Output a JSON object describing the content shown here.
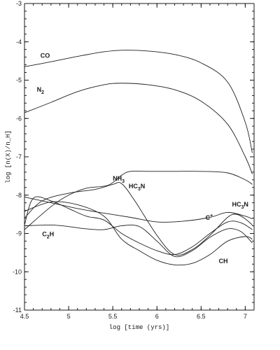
{
  "chart_data": {
    "type": "line",
    "xlabel": "log [time (yrs)]",
    "ylabel": "log [n(X)/n_H]",
    "xlim": [
      4.5,
      7.1
    ],
    "ylim": [
      -11,
      -3
    ],
    "x_ticks": [
      4.5,
      5,
      5.5,
      6,
      6.5,
      7
    ],
    "x_tick_labels": [
      "4.5",
      "5",
      "5.5",
      "6",
      "6.5",
      "7"
    ],
    "y_ticks": [
      -11,
      -10,
      -9,
      -8,
      -7,
      -6,
      -5,
      -4,
      -3
    ],
    "y_tick_labels": [
      "-11",
      "-10",
      "-9",
      "-8",
      "-7",
      "-6",
      "-5",
      "-4",
      "-3"
    ],
    "series": [
      {
        "name": "CO",
        "label_parts": {
          "base": "CO",
          "sub": "",
          "sup": ""
        },
        "x": [
          4.5,
          4.8,
          5.1,
          5.4,
          5.6,
          5.9,
          6.2,
          6.5,
          6.8,
          7.0,
          7.08
        ],
        "y": [
          -4.65,
          -4.52,
          -4.38,
          -4.26,
          -4.22,
          -4.24,
          -4.33,
          -4.55,
          -5.05,
          -6.1,
          -6.9
        ]
      },
      {
        "name": "N2",
        "label_parts": {
          "base": "N",
          "sub": "2",
          "sup": ""
        },
        "x": [
          4.5,
          4.8,
          5.1,
          5.4,
          5.6,
          5.9,
          6.2,
          6.5,
          6.8,
          7.0,
          7.08
        ],
        "y": [
          -5.85,
          -5.58,
          -5.3,
          -5.12,
          -5.08,
          -5.12,
          -5.25,
          -5.55,
          -6.15,
          -7.0,
          -7.45
        ]
      },
      {
        "name": "NH3",
        "label_parts": {
          "base": "NH",
          "sub": "3",
          "sup": ""
        },
        "x": [
          4.5,
          4.8,
          5.0,
          5.2,
          5.45,
          5.6,
          5.7,
          5.9,
          6.2,
          6.5,
          6.8,
          7.0,
          7.08
        ],
        "y": [
          -8.9,
          -8.3,
          -8.0,
          -7.82,
          -7.74,
          -7.48,
          -7.38,
          -7.38,
          -7.38,
          -7.38,
          -7.42,
          -7.6,
          -7.72
        ]
      },
      {
        "name": "HC3N",
        "label_parts": {
          "base": "HC",
          "sub": "3",
          "sup": "",
          "tail": "N"
        },
        "x": [
          4.5,
          4.7,
          5.0,
          5.3,
          5.5,
          5.6,
          5.75,
          6.0,
          6.2,
          6.4,
          6.6,
          6.8,
          6.9,
          7.0,
          7.08
        ],
        "y": [
          -8.6,
          -8.15,
          -7.95,
          -7.85,
          -7.72,
          -7.7,
          -8.15,
          -9.05,
          -9.55,
          -9.42,
          -9.05,
          -8.58,
          -8.5,
          -8.62,
          -8.78
        ]
      },
      {
        "name": "C+",
        "label_parts": {
          "base": "C",
          "sub": "",
          "sup": "+"
        },
        "x": [
          4.5,
          4.8,
          5.1,
          5.4,
          5.7,
          6.0,
          6.3,
          6.6,
          6.8,
          7.0,
          7.08
        ],
        "y": [
          -8.05,
          -8.2,
          -8.35,
          -8.47,
          -8.58,
          -8.7,
          -8.68,
          -8.58,
          -8.45,
          -8.55,
          -8.62
        ]
      },
      {
        "name": "C2H",
        "label_parts": {
          "base": "C",
          "sub": "2",
          "sup": "",
          "tail": "H"
        },
        "x": [
          4.5,
          4.6,
          4.8,
          5.0,
          5.2,
          5.4,
          5.6,
          5.8,
          6.0,
          6.2,
          6.4,
          6.6,
          6.8,
          6.95,
          7.08
        ],
        "y": [
          -8.78,
          -8.08,
          -8.15,
          -8.35,
          -8.55,
          -8.65,
          -9.0,
          -9.25,
          -9.45,
          -9.55,
          -9.35,
          -9.0,
          -8.7,
          -8.72,
          -8.9
        ]
      },
      {
        "name": "CH",
        "label_parts": {
          "base": "CH",
          "sub": "",
          "sup": ""
        },
        "x": [
          4.5,
          4.8,
          5.1,
          5.4,
          5.6,
          5.8,
          6.0,
          6.2,
          6.4,
          6.6,
          6.8,
          7.0,
          7.08
        ],
        "y": [
          -8.42,
          -8.18,
          -8.25,
          -8.55,
          -9.15,
          -9.45,
          -9.7,
          -9.82,
          -9.78,
          -9.55,
          -9.2,
          -9.08,
          -9.15
        ]
      },
      {
        "name": "",
        "label_parts": {
          "base": "",
          "sub": "",
          "sup": ""
        },
        "x": [
          4.5,
          4.8,
          5.0,
          5.2,
          5.4,
          5.6,
          5.8,
          6.0,
          6.2,
          6.4,
          6.6,
          6.8,
          6.95,
          7.08
        ],
        "y": [
          -8.8,
          -8.78,
          -8.82,
          -8.88,
          -8.9,
          -8.8,
          -8.82,
          -9.2,
          -9.6,
          -9.45,
          -9.1,
          -8.88,
          -8.95,
          -9.25
        ]
      }
    ],
    "labels": [
      {
        "series": "CO",
        "x": 4.68,
        "y": -4.42
      },
      {
        "series": "N2",
        "x": 4.64,
        "y": -5.3
      },
      {
        "series": "NH3",
        "x": 5.5,
        "y": -7.62
      },
      {
        "series": "HC3N",
        "x": 5.68,
        "y": -7.82
      },
      {
        "series": "C+",
        "x": 6.55,
        "y": -8.64
      },
      {
        "series": "C2H",
        "x": 4.7,
        "y": -9.07
      },
      {
        "series": "CH",
        "x": 6.7,
        "y": -9.78
      },
      {
        "series": "HC3N",
        "x": 6.85,
        "y": -8.3
      }
    ]
  }
}
